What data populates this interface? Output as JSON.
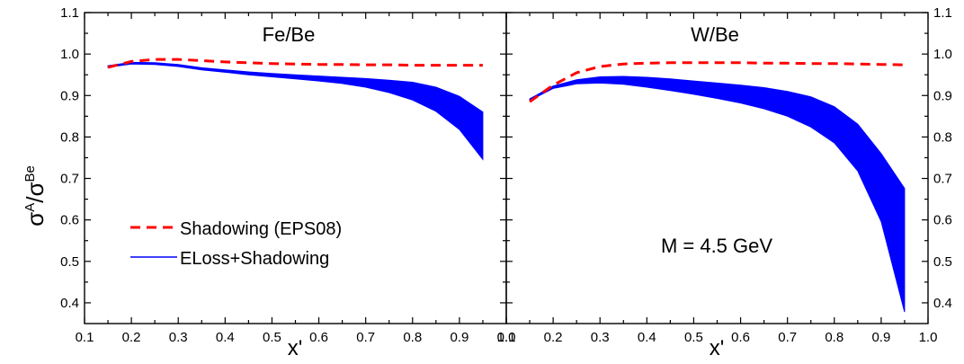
{
  "y_axis_label": {
    "main": "σ",
    "sup1": "A",
    "sep": "/σ",
    "sup2": "Be"
  },
  "legend": {
    "shadowing": "Shadowing (EPS08)",
    "eloss": "ELoss+Shadowing"
  },
  "annotation": "M = 4.5 GeV",
  "colors": {
    "shadowing": "#ff0000",
    "eloss": "#0000ff",
    "axes": "#000000"
  },
  "chart_data": [
    {
      "type": "line",
      "title": "Fe/Be",
      "xlabel": "x'",
      "ylabel": "σ^A/σ^Be",
      "xlim": [
        0.1,
        1.0
      ],
      "ylim": [
        0.35,
        1.1
      ],
      "xticks": [
        "0.1",
        "0.2",
        "0.3",
        "0.4",
        "0.5",
        "0.6",
        "0.7",
        "0.8",
        "0.9",
        "1.0"
      ],
      "yticks": [
        "0.4",
        "0.5",
        "0.6",
        "0.7",
        "0.8",
        "0.9",
        "1.0",
        "1.1"
      ],
      "x": [
        0.15,
        0.2,
        0.25,
        0.3,
        0.35,
        0.4,
        0.45,
        0.5,
        0.55,
        0.6,
        0.65,
        0.7,
        0.75,
        0.8,
        0.85,
        0.9,
        0.95
      ],
      "series": [
        {
          "name": "Shadowing (EPS08)",
          "style": "dashed",
          "values": [
            0.968,
            0.982,
            0.987,
            0.987,
            0.984,
            0.981,
            0.979,
            0.977,
            0.976,
            0.975,
            0.975,
            0.974,
            0.974,
            0.973,
            0.973,
            0.973,
            0.973
          ]
        },
        {
          "name": "ELoss+Shadowing",
          "style": "band",
          "upper": [
            0.972,
            0.98,
            0.979,
            0.975,
            0.967,
            0.962,
            0.957,
            0.953,
            0.95,
            0.947,
            0.944,
            0.941,
            0.937,
            0.932,
            0.92,
            0.898,
            0.86
          ],
          "lower": [
            0.968,
            0.976,
            0.975,
            0.97,
            0.962,
            0.956,
            0.95,
            0.945,
            0.94,
            0.935,
            0.929,
            0.92,
            0.907,
            0.889,
            0.862,
            0.818,
            0.746
          ]
        }
      ]
    },
    {
      "type": "line",
      "title": "W/Be",
      "xlabel": "x'",
      "ylabel": "σ^A/σ^Be",
      "xlim": [
        0.1,
        1.0
      ],
      "ylim": [
        0.35,
        1.1
      ],
      "xticks": [
        "0.1",
        "0.2",
        "0.3",
        "0.4",
        "0.5",
        "0.6",
        "0.7",
        "0.8",
        "0.9",
        "1.0"
      ],
      "yticks": [
        "0.4",
        "0.5",
        "0.6",
        "0.7",
        "0.8",
        "0.9",
        "1.0",
        "1.1"
      ],
      "x": [
        0.15,
        0.2,
        0.25,
        0.3,
        0.35,
        0.4,
        0.45,
        0.5,
        0.55,
        0.6,
        0.65,
        0.7,
        0.75,
        0.8,
        0.85,
        0.9,
        0.95
      ],
      "series": [
        {
          "name": "Shadowing (EPS08)",
          "style": "dashed",
          "values": [
            0.885,
            0.925,
            0.955,
            0.97,
            0.976,
            0.978,
            0.979,
            0.979,
            0.979,
            0.979,
            0.978,
            0.978,
            0.977,
            0.977,
            0.976,
            0.975,
            0.974
          ]
        },
        {
          "name": "ELoss+Shadowing",
          "style": "band",
          "upper": [
            0.892,
            0.923,
            0.938,
            0.945,
            0.946,
            0.944,
            0.94,
            0.935,
            0.93,
            0.925,
            0.919,
            0.91,
            0.897,
            0.873,
            0.831,
            0.76,
            0.676
          ],
          "lower": [
            0.888,
            0.917,
            0.928,
            0.93,
            0.927,
            0.92,
            0.912,
            0.903,
            0.893,
            0.882,
            0.868,
            0.85,
            0.824,
            0.786,
            0.718,
            0.596,
            0.378
          ]
        }
      ]
    }
  ]
}
